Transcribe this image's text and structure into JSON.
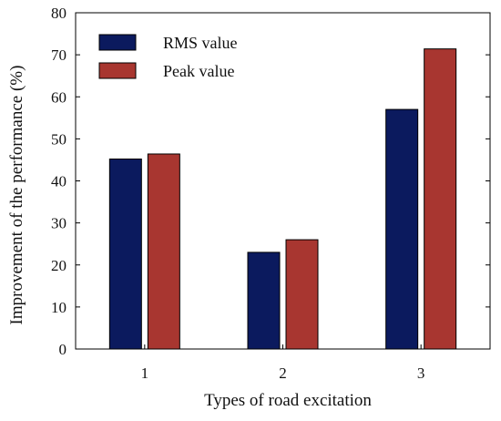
{
  "chart_data": {
    "type": "bar",
    "title": "",
    "xlabel": "Types of road excitation",
    "ylabel": "Improvement of the performance (%)",
    "categories": [
      "1",
      "2",
      "3"
    ],
    "ylim": [
      0,
      80
    ],
    "yticks": [
      0,
      10,
      20,
      30,
      40,
      50,
      60,
      70,
      80
    ],
    "grid": false,
    "legend_position": "top-left",
    "series": [
      {
        "name": "RMS value",
        "color": "#0b1a5e",
        "values": [
          45.2,
          23.0,
          57.0
        ]
      },
      {
        "name": "Peak value",
        "color": "#a83630",
        "values": [
          46.4,
          26.0,
          71.4
        ]
      }
    ]
  }
}
